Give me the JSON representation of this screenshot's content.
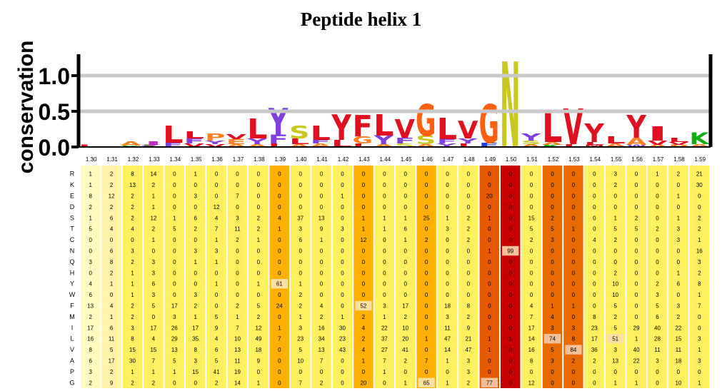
{
  "title": "Peptide helix 1",
  "logo": {
    "ylabel": "conservation",
    "yticks": [
      "0.0",
      "0.5",
      "1.0"
    ],
    "ylim": [
      0,
      1.3
    ],
    "stacks": [
      [
        [
          "L",
          0.03,
          "#e01020"
        ]
      ],
      [
        [
          "-",
          0.01,
          "#e01020"
        ]
      ],
      [
        [
          "A",
          0.06,
          "#ff8020"
        ],
        [
          "K",
          0.02,
          "#10b010"
        ]
      ],
      [
        [
          "J",
          0.05,
          "#c030c0"
        ],
        [
          "K",
          0.03,
          "#10b010"
        ]
      ],
      [
        [
          "L",
          0.24,
          "#e01020"
        ],
        [
          "F",
          0.06,
          "#8040e0"
        ]
      ],
      [
        [
          "L",
          0.1,
          "#e01020"
        ],
        [
          "F",
          0.07,
          "#8040e0"
        ],
        [
          "V",
          0.05,
          "#e01020"
        ]
      ],
      [
        [
          "P",
          0.1,
          "#ff8020"
        ],
        [
          "Y",
          0.05,
          "#8040e0"
        ],
        [
          "V",
          0.04,
          "#e01020"
        ]
      ],
      [
        [
          "E",
          0.07,
          "#ff8020"
        ],
        [
          "V",
          0.07,
          "#e01020"
        ],
        [
          "A",
          0.04,
          "#ff8020"
        ]
      ],
      [
        [
          "L",
          0.28,
          "#e01020"
        ],
        [
          "Y",
          0.08,
          "#8040e0"
        ],
        [
          "A",
          0.04,
          "#ff8020"
        ]
      ],
      [
        [
          "Y",
          0.38,
          "#8040e0"
        ],
        [
          "F",
          0.12,
          "#8040e0"
        ],
        [
          "L",
          0.05,
          "#e01020"
        ]
      ],
      [
        [
          "S",
          0.18,
          "#c8c820"
        ],
        [
          "L",
          0.08,
          "#e01020"
        ],
        [
          "A",
          0.04,
          "#ff8020"
        ]
      ],
      [
        [
          "L",
          0.2,
          "#e01020"
        ],
        [
          "A",
          0.05,
          "#ff8020"
        ],
        [
          "F",
          0.05,
          "#8040e0"
        ]
      ],
      [
        [
          "Y",
          0.36,
          "#e01020"
        ],
        [
          "L",
          0.1,
          "#e01020"
        ]
      ],
      [
        [
          "F",
          0.3,
          "#e01020"
        ],
        [
          "G",
          0.1,
          "#ff8020"
        ],
        [
          "L",
          0.05,
          "#e01020"
        ]
      ],
      [
        [
          "L",
          0.3,
          "#e01020"
        ],
        [
          "Y",
          0.12,
          "#8040e0"
        ],
        [
          "A",
          0.04,
          "#ff8020"
        ]
      ],
      [
        [
          "V",
          0.26,
          "#e01020"
        ],
        [
          "F",
          0.08,
          "#8040e0"
        ],
        [
          "S",
          0.05,
          "#c8c820"
        ]
      ],
      [
        [
          "G",
          0.44,
          "#ff6010"
        ],
        [
          "S",
          0.12,
          "#c8c820"
        ],
        [
          "A",
          0.04,
          "#ff8020"
        ]
      ],
      [
        [
          "L",
          0.3,
          "#e01020"
        ],
        [
          "F",
          0.06,
          "#8040e0"
        ],
        [
          "Y",
          0.05,
          "#8040e0"
        ]
      ],
      [
        [
          "V",
          0.25,
          "#e01020"
        ],
        [
          "Y",
          0.07,
          "#8040e0"
        ],
        [
          "L",
          0.05,
          "#e01020"
        ]
      ],
      [
        [
          "G",
          0.54,
          "#ff6010"
        ],
        [
          "E",
          0.06,
          "#2040e0"
        ]
      ],
      [
        [
          "N",
          1.2,
          "#c8c820"
        ]
      ],
      [
        [
          "Y",
          0.1,
          "#8040e0"
        ],
        [
          "S",
          0.05,
          "#c8c820"
        ],
        [
          "A",
          0.04,
          "#ff8020"
        ]
      ],
      [
        [
          "L",
          0.4,
          "#e01020"
        ],
        [
          "A",
          0.04,
          "#ff8020"
        ],
        [
          "K",
          0.03,
          "#10b010"
        ]
      ],
      [
        [
          "V",
          0.5,
          "#e01020"
        ],
        [
          "L",
          0.04,
          "#e01020"
        ]
      ],
      [
        [
          "Y",
          0.26,
          "#e01020"
        ],
        [
          "L",
          0.04,
          "#e01020"
        ],
        [
          "M",
          0.03,
          "#e01020"
        ]
      ],
      [
        [
          "L",
          0.1,
          "#e01020"
        ],
        [
          "A",
          0.05,
          "#ff8020"
        ]
      ],
      [
        [
          "Y",
          0.32,
          "#e01020"
        ],
        [
          "A",
          0.1,
          "#ff8020"
        ],
        [
          "W",
          0.03,
          "#8040e0"
        ]
      ],
      [
        [
          "I",
          0.2,
          "#e01020"
        ],
        [
          "V",
          0.06,
          "#e01020"
        ],
        [
          "A",
          0.03,
          "#ff8020"
        ]
      ],
      [
        [
          "L",
          0.06,
          "#e01020"
        ],
        [
          "V",
          0.04,
          "#e01020"
        ],
        [
          "P",
          0.03,
          "#ff8020"
        ]
      ],
      [
        [
          "K",
          0.16,
          "#10b010"
        ],
        [
          "A",
          0.04,
          "#ff8020"
        ]
      ]
    ]
  },
  "heatmap": {
    "columns": [
      "1.30",
      "1.31",
      "1.32",
      "1.33",
      "1.34",
      "1.35",
      "1.36",
      "1.37",
      "1.38",
      "1.39",
      "1.40",
      "1.41",
      "1.42",
      "1.43",
      "1.44",
      "1.45",
      "1.46",
      "1.47",
      "1.48",
      "1.49",
      "1.50",
      "1.51",
      "1.52",
      "1.53",
      "1.54",
      "1.55",
      "1.56",
      "1.57",
      "1.58",
      "1.59"
    ],
    "rows": [
      "R",
      "K",
      "E",
      "D",
      "S",
      "T",
      "C",
      "N",
      "Q",
      "H",
      "Y",
      "W",
      "F",
      "M",
      "I",
      "L",
      "V",
      "A",
      "P",
      "G"
    ],
    "column_colors": [
      "#fffbc0",
      "#fff4a8",
      "#fff060",
      "#fff060",
      "#fff060",
      "#fff060",
      "#fff060",
      "#fff060",
      "#fff060",
      "#ffb000",
      "#fff060",
      "#fff060",
      "#fff060",
      "#ffb000",
      "#fff060",
      "#fff060",
      "#ffb000",
      "#fff060",
      "#fff060",
      "#e85a00",
      "#c80000",
      "#fff060",
      "#e86a00",
      "#e86a00",
      "#fff060",
      "#fff060",
      "#fff060",
      "#fff060",
      "#fff060",
      "#fff060"
    ],
    "values": [
      [
        1,
        2,
        8,
        14,
        0,
        1,
        0,
        0,
        0,
        0,
        0,
        0,
        0,
        0,
        0,
        0,
        0,
        0,
        0,
        0,
        0,
        0,
        0,
        0,
        0,
        3,
        0,
        1,
        2,
        21
      ],
      [
        1,
        2,
        13,
        2,
        0,
        0,
        0,
        0,
        0,
        0,
        0,
        0,
        0,
        0,
        0,
        0,
        0,
        0,
        0,
        0,
        0,
        0,
        0,
        0,
        0,
        2,
        0,
        0,
        0,
        30
      ],
      [
        8,
        12,
        2,
        1,
        0,
        3,
        0,
        7,
        0,
        0,
        0,
        0,
        1,
        0,
        0,
        0,
        0,
        0,
        0,
        20,
        0,
        0,
        0,
        0,
        0,
        0,
        0,
        0,
        1,
        0
      ],
      [
        2,
        2,
        2,
        1,
        0,
        0,
        12,
        0,
        0,
        0,
        0,
        0,
        0,
        0,
        0,
        0,
        0,
        0,
        0,
        0,
        0,
        0,
        0,
        0,
        0,
        0,
        0,
        0,
        0,
        0
      ],
      [
        1,
        6,
        2,
        12,
        1,
        6,
        4,
        3,
        2,
        4,
        37,
        13,
        0,
        1,
        1,
        1,
        25,
        1,
        2,
        1,
        0,
        15,
        2,
        0,
        0,
        1,
        2,
        0,
        1,
        2
      ],
      [
        5,
        4,
        4,
        2,
        5,
        2,
        7,
        11,
        2,
        1,
        3,
        9,
        3,
        1,
        1,
        6,
        0,
        3,
        2,
        0,
        0,
        5,
        5,
        1,
        0,
        5,
        5,
        2,
        3,
        2
      ],
      [
        0,
        0,
        0,
        1,
        0,
        0,
        1,
        2,
        1,
        0,
        6,
        1,
        0,
        12,
        0,
        1,
        2,
        0,
        2,
        0,
        0,
        2,
        3,
        0,
        4,
        2,
        0,
        0,
        3,
        1
      ],
      [
        0,
        6,
        3,
        0,
        0,
        3,
        3,
        0,
        0,
        0,
        0,
        0,
        0,
        0,
        0,
        0,
        0,
        0,
        0,
        1,
        99,
        0,
        0,
        0,
        0,
        0,
        0,
        0,
        0,
        16
      ],
      [
        3,
        8,
        2,
        3,
        0,
        1,
        1,
        0,
        0,
        0,
        0,
        0,
        0,
        0,
        0,
        0,
        0,
        0,
        0,
        0,
        0,
        0,
        0,
        0,
        0,
        0,
        0,
        0,
        0,
        3
      ],
      [
        0,
        2,
        1,
        3,
        0,
        0,
        0,
        0,
        0,
        0,
        0,
        0,
        0,
        0,
        0,
        0,
        0,
        0,
        0,
        0,
        0,
        0,
        0,
        0,
        0,
        2,
        0,
        0,
        1,
        2
      ],
      [
        4,
        1,
        1,
        6,
        0,
        0,
        1,
        0,
        1,
        61,
        1,
        0,
        0,
        0,
        0,
        0,
        0,
        0,
        0,
        0,
        0,
        0,
        0,
        0,
        0,
        10,
        0,
        2,
        6,
        8
      ],
      [
        6,
        0,
        1,
        3,
        0,
        3,
        0,
        0,
        0,
        0,
        2,
        0,
        0,
        0,
        0,
        0,
        0,
        0,
        0,
        0,
        0,
        0,
        0,
        0,
        0,
        10,
        0,
        3,
        0,
        1
      ],
      [
        13,
        4,
        2,
        5,
        17,
        2,
        0,
        2,
        5,
        24,
        2,
        4,
        0,
        52,
        3,
        17,
        0,
        18,
        8,
        0,
        0,
        4,
        1,
        1,
        0,
        5,
        0,
        5,
        3,
        7
      ],
      [
        2,
        1,
        2,
        0,
        3,
        1,
        5,
        1,
        2,
        0,
        1,
        2,
        1,
        2,
        1,
        2,
        0,
        3,
        2,
        0,
        0,
        7,
        4,
        0,
        8,
        2,
        0,
        6,
        2,
        0
      ],
      [
        17,
        6,
        3,
        17,
        26,
        17,
        9,
        7,
        12,
        1,
        3,
        16,
        30,
        4,
        22,
        10,
        0,
        11,
        9,
        0,
        0,
        17,
        3,
        3,
        23,
        5,
        29,
        40,
        22,
        0
      ],
      [
        16,
        11,
        8,
        4,
        29,
        35,
        4,
        10,
        49,
        7,
        23,
        34,
        23,
        2,
        37,
        20,
        1,
        47,
        21,
        1,
        1,
        14,
        74,
        8,
        17,
        51,
        1,
        28,
        15,
        3
      ],
      [
        8,
        5,
        15,
        15,
        13,
        8,
        6,
        13,
        18,
        0,
        5,
        13,
        43,
        4,
        27,
        41,
        0,
        14,
        47,
        1,
        0,
        16,
        5,
        84,
        36,
        3,
        40,
        11,
        11,
        1
      ],
      [
        6,
        17,
        30,
        7,
        5,
        3,
        5,
        11,
        9,
        0,
        10,
        7,
        0,
        1,
        7,
        2,
        7,
        1,
        3,
        0,
        0,
        8,
        3,
        2,
        2,
        13,
        22,
        3,
        18,
        3
      ],
      [
        3,
        2,
        1,
        1,
        1,
        15,
        41,
        19,
        0,
        0,
        0,
        0,
        0,
        0,
        1,
        0,
        0,
        0,
        3,
        0,
        0,
        0,
        0,
        0,
        0,
        0,
        0,
        0,
        0,
        0
      ],
      [
        2,
        9,
        2,
        2,
        0,
        0,
        2,
        14,
        1,
        0,
        7,
        2,
        0,
        20,
        0,
        1,
        65,
        1,
        2,
        77,
        0,
        12,
        0,
        0,
        0,
        1,
        1,
        0,
        10,
        1
      ]
    ]
  }
}
